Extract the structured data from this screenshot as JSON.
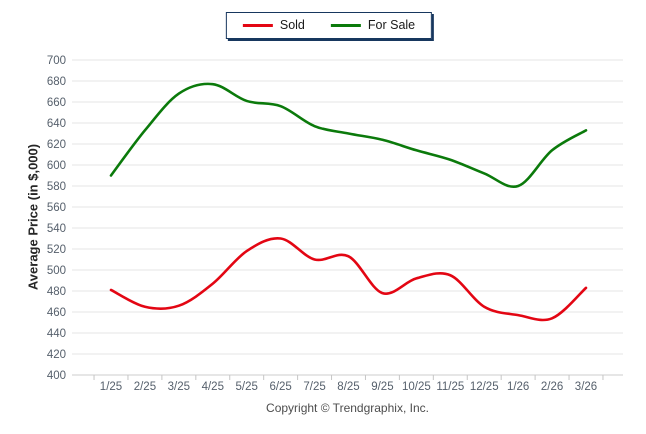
{
  "theme": {
    "background": "#ffffff",
    "grid_color": "#e4e4e4",
    "axis_line_color": "#cccccc",
    "tick_color": "#c6c6c6",
    "axis_text_color": "#56606c",
    "legend_border_color": "#17375e",
    "sold_color": "#e30613",
    "for_sale_color": "#0b7a0b"
  },
  "chart_data": {
    "type": "line",
    "title": "",
    "categories": [
      "1/25",
      "2/25",
      "3/25",
      "4/25",
      "5/25",
      "6/25",
      "7/25",
      "8/25",
      "9/25",
      "10/25",
      "11/25",
      "12/25",
      "1/26",
      "2/26",
      "3/26"
    ],
    "series": [
      {
        "name": "Sold",
        "color": "#e30613",
        "values": [
          481,
          465,
          466,
          487,
          518,
          530,
          510,
          513,
          478,
          492,
          495,
          465,
          457,
          454,
          483
        ]
      },
      {
        "name": "For Sale",
        "color": "#0b7a0b",
        "values": [
          590,
          633,
          668,
          677,
          661,
          656,
          637,
          630,
          624,
          614,
          605,
          592,
          580,
          614,
          633
        ]
      }
    ],
    "xlabel": "",
    "ylabel": "Average Price (in $,000)",
    "ylim": [
      400,
      700
    ],
    "ytick_step": 20,
    "grid": true,
    "legend_position": "top-center"
  },
  "footer": {
    "copyright": "Copyright © Trendgraphix, Inc."
  }
}
